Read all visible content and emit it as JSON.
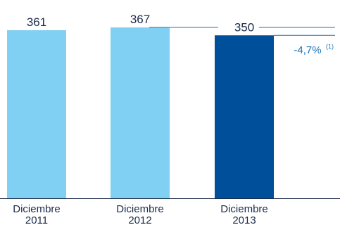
{
  "chart_data": {
    "type": "bar",
    "categories": [
      [
        "Diciembre",
        "2011"
      ],
      [
        "Diciembre",
        "2012"
      ],
      [
        "Diciembre",
        "2013"
      ]
    ],
    "values": [
      361,
      367,
      350
    ],
    "value_labels": [
      "361",
      "367",
      "350"
    ],
    "bar_colors": [
      "#7fd0f2",
      "#7fd0f2",
      "#004f9a"
    ],
    "ylim": [
      0,
      367
    ],
    "grid": false,
    "annotation": {
      "text": "-4,7%",
      "superscript": "(1)",
      "color": "#1a73b8"
    },
    "reference_line_color": "#1a73b8",
    "label_color": "#1b2a4a"
  }
}
